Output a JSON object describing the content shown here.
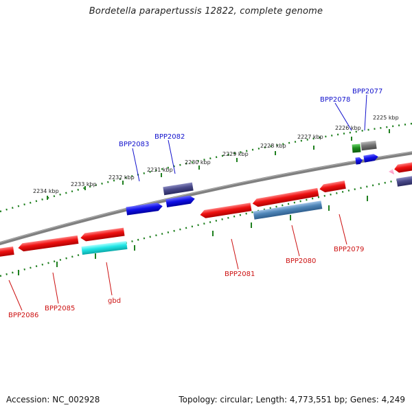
{
  "title": "Bordetella parapertussis 12822, complete genome",
  "footer": {
    "accession": "Accession: NC_002928",
    "summary": "Topology: circular; Length: 4,773,551 bp; Genes: 4,249"
  },
  "ruler_labels": [
    "2234 kbp",
    "2233 kbp",
    "2232 kbp",
    "2231 kbp",
    "2230 kbp",
    "2229 kbp",
    "2228 kbp",
    "2227 kbp",
    "2226 kbp",
    "2225 kbp"
  ],
  "gene_labels": {
    "top": [
      "BPP2083",
      "BPP2082",
      "BPP2078",
      "BPP2077"
    ],
    "bottom": [
      "BPP2086",
      "BPP2085",
      "gbd",
      "BPP2081",
      "BPP2080",
      "BPP2079"
    ]
  },
  "colors": {
    "backbone": "#808080",
    "ruler": "#1e7f1e",
    "forward_gene": "#1010e0",
    "reverse_gene": "#ee1010",
    "top_label": "#1010cc",
    "bottom_label": "#cc1010",
    "slate_gene": "#4a4a8a",
    "steel_gene": "#4f86b8",
    "cyan_gene": "#22e6e6",
    "gray_gene": "#777777",
    "green_gene": "#1e8c1e",
    "pink_gene": "#ff99cc"
  }
}
